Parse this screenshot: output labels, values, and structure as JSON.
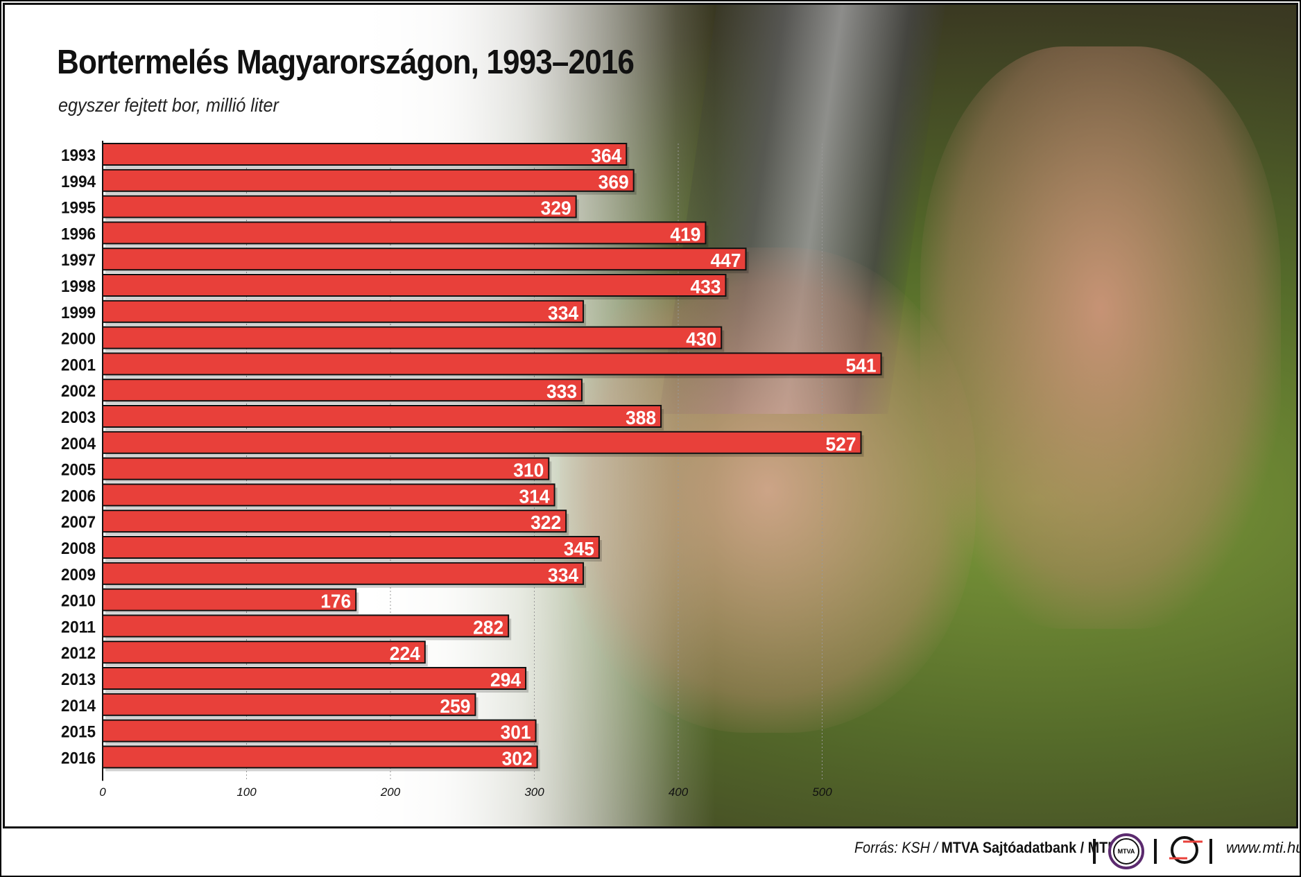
{
  "chart_data": {
    "type": "bar",
    "orientation": "horizontal",
    "title": "Bortermelés Magyarországon, 1993–2016",
    "subtitle": "egyszer fejtett bor, millió liter",
    "categories": [
      "1993",
      "1994",
      "1995",
      "1996",
      "1997",
      "1998",
      "1999",
      "2000",
      "2001",
      "2002",
      "2003",
      "2004",
      "2005",
      "2006",
      "2007",
      "2008",
      "2009",
      "2010",
      "2011",
      "2012",
      "2013",
      "2014",
      "2015",
      "2016"
    ],
    "values": [
      364,
      369,
      329,
      419,
      447,
      433,
      334,
      430,
      541,
      333,
      388,
      527,
      310,
      314,
      322,
      345,
      334,
      176,
      282,
      224,
      294,
      259,
      301,
      302
    ],
    "xticks": [
      "0",
      "100",
      "200",
      "300",
      "400",
      "500"
    ],
    "xlim": [
      0,
      600
    ],
    "grid": "vertical dotted",
    "bar_color": "#e8403a",
    "data_labels": true
  },
  "footer": {
    "source_prefix": "Forrás: KSH / ",
    "source_bold": "MTVA Sajtóadatbank / MTI",
    "logo1": "MTVA",
    "website": "www.mti.hu"
  },
  "colors": {
    "mtva_ring": "#5b2a6e",
    "mti_red": "#e8403a"
  }
}
